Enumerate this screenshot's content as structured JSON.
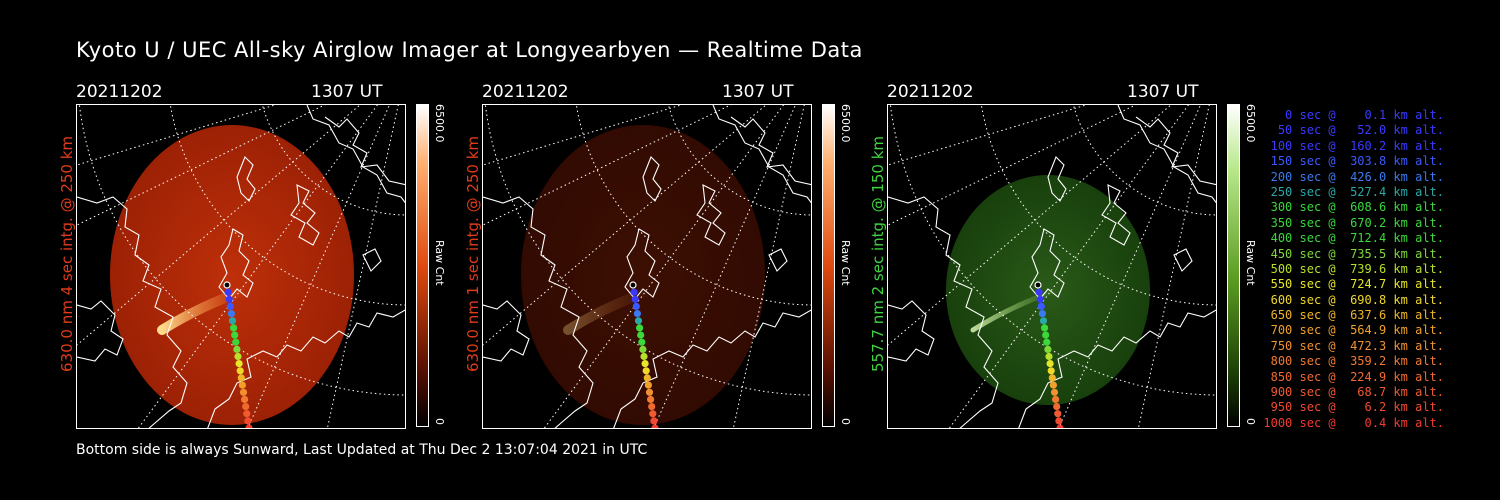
{
  "title": "Kyoto U / UEC All-sky Airglow Imager at Longyearbyen — Realtime Data",
  "footer": "Bottom side is always Sunward, Last Updated at Thu Dec  2 13:07:04 2021 in UTC",
  "panels": [
    {
      "date": "20211202",
      "time": "1307 UT",
      "ylabel": "630.0 nm 4 sec intg. @ 250 km",
      "cbar_max": "6500.0",
      "cbar_min": "0",
      "cbar_unit": "Raw Cnt",
      "color": "#e03b1a",
      "brightness": 1.0,
      "tint": "red"
    },
    {
      "date": "20211202",
      "time": "1307 UT",
      "ylabel": "630.0 nm 1 sec intg. @ 250 km",
      "cbar_max": "6500.0",
      "cbar_min": "0",
      "cbar_unit": "Raw Cnt",
      "color": "#e03b1a",
      "brightness": 0.32,
      "tint": "red"
    },
    {
      "date": "20211202",
      "time": "1307 UT",
      "ylabel": "557.7 nm 2 sec intg. @ 150 km",
      "cbar_max": "6500.0",
      "cbar_min": "0",
      "cbar_unit": "Raw Cnt",
      "color": "#3fd43f",
      "brightness": 0.8,
      "tint": "green"
    }
  ],
  "legend": [
    {
      "text": "   0 sec @    0.1 km alt.",
      "color": "#3a3aff"
    },
    {
      "text": "  50 sec @   52.0 km alt.",
      "color": "#3a3aff"
    },
    {
      "text": " 100 sec @  160.2 km alt.",
      "color": "#3a3aff"
    },
    {
      "text": " 150 sec @  303.8 km alt.",
      "color": "#3a5aff"
    },
    {
      "text": " 200 sec @  426.0 km alt.",
      "color": "#3a7aee"
    },
    {
      "text": " 250 sec @  527.4 km alt.",
      "color": "#2aa8a8"
    },
    {
      "text": " 300 sec @  608.6 km alt.",
      "color": "#3ad83a"
    },
    {
      "text": " 350 sec @  670.2 km alt.",
      "color": "#3ad83a"
    },
    {
      "text": " 400 sec @  712.4 km alt.",
      "color": "#3ad83a"
    },
    {
      "text": " 450 sec @  735.5 km alt.",
      "color": "#7ed83a"
    },
    {
      "text": " 500 sec @  739.6 km alt.",
      "color": "#b8e02a"
    },
    {
      "text": " 550 sec @  724.7 km alt.",
      "color": "#e6e62a"
    },
    {
      "text": " 600 sec @  690.8 km alt.",
      "color": "#f0d82a"
    },
    {
      "text": " 650 sec @  637.6 km alt.",
      "color": "#f0b42a"
    },
    {
      "text": " 700 sec @  564.9 km alt.",
      "color": "#f0a02a"
    },
    {
      "text": " 750 sec @  472.3 km alt.",
      "color": "#f09030"
    },
    {
      "text": " 800 sec @  359.2 km alt.",
      "color": "#f07a30"
    },
    {
      "text": " 850 sec @  224.9 km alt.",
      "color": "#f06a30"
    },
    {
      "text": " 900 sec @   68.7 km alt.",
      "color": "#f05a30"
    },
    {
      "text": " 950 sec @    6.2 km alt.",
      "color": "#f04a30"
    },
    {
      "text": "1000 sec @    0.4 km alt.",
      "color": "#f03a30"
    }
  ]
}
